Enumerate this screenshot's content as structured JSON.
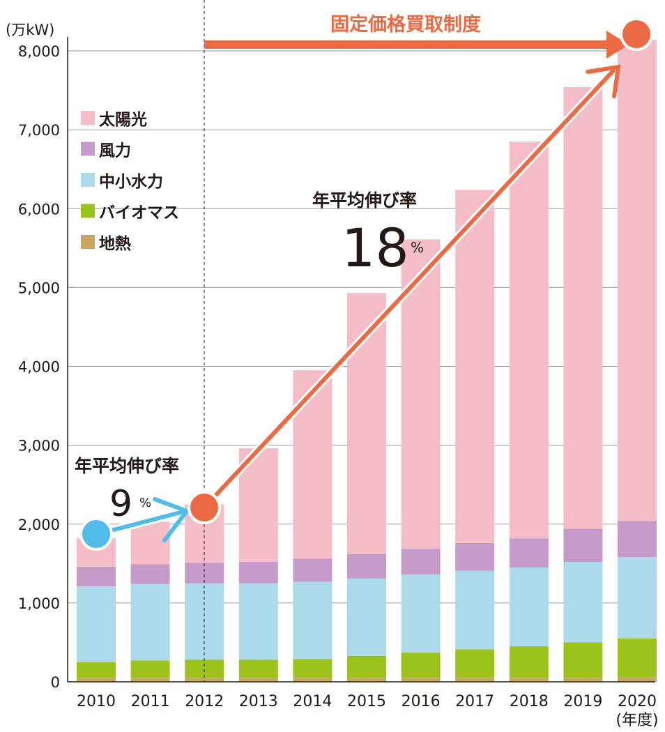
{
  "chart_data": {
    "type": "bar",
    "stacked": true,
    "ylabel": "(万kW)",
    "xunit": "(年度)",
    "ylim": [
      0,
      8000
    ],
    "yticks": [
      0,
      1000,
      2000,
      3000,
      4000,
      5000,
      6000,
      7000,
      8000
    ],
    "ytick_labels": [
      "0",
      "1,000",
      "2,000",
      "3,000",
      "4,000",
      "5,000",
      "6,000",
      "7,000",
      "8,000"
    ],
    "grid": true,
    "legend_position": "top-left",
    "categories": [
      "2010",
      "2011",
      "2012",
      "2013",
      "2014",
      "2015",
      "2016",
      "2017",
      "2018",
      "2019",
      "2020"
    ],
    "series": [
      {
        "name": "地熱",
        "color": "#c8a765",
        "values": [
          50,
          50,
          50,
          50,
          50,
          50,
          50,
          50,
          50,
          50,
          60
        ]
      },
      {
        "name": "バイオマス",
        "color": "#9bc31c",
        "values": [
          200,
          220,
          230,
          230,
          240,
          280,
          320,
          360,
          400,
          450,
          490
        ]
      },
      {
        "name": "中小水力",
        "color": "#acdae8",
        "values": [
          960,
          970,
          970,
          970,
          980,
          980,
          990,
          1000,
          1000,
          1020,
          1030
        ]
      },
      {
        "name": "風力",
        "color": "#c49bc9",
        "values": [
          250,
          250,
          260,
          270,
          290,
          310,
          330,
          350,
          370,
          420,
          460
        ]
      },
      {
        "name": "太陽光",
        "color": "#f4bdc8",
        "values": [
          360,
          540,
          740,
          1440,
          2390,
          3310,
          3920,
          4480,
          5030,
          5600,
          6100
        ]
      }
    ],
    "annotations": {
      "policy_label": "固定価格買取制度",
      "pre_label": "年平均伸び率",
      "pre_value": "9",
      "pre_unit": "%",
      "post_label": "年平均伸び率",
      "post_value": "18",
      "post_unit": "%",
      "pre_color": "#4fbde8",
      "post_color": "#ec6a43"
    }
  }
}
